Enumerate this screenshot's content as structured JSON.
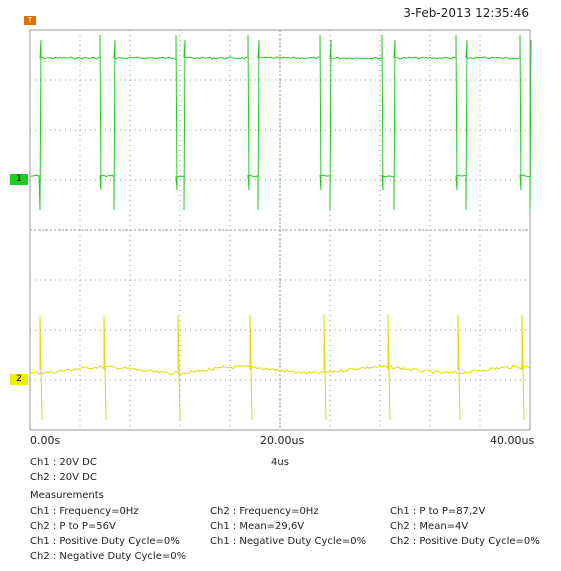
{
  "header": {
    "timestamp": "3-Feb-2013 12:35:46"
  },
  "markers": {
    "ch1": "1",
    "ch2": "2",
    "trigger": "T"
  },
  "time_axis": {
    "start": "0.00s",
    "mid": "20.00us",
    "end": "40.00us"
  },
  "channels": {
    "ch1": "Ch1 : 20V  DC",
    "ch2": "Ch2 : 20V  DC"
  },
  "timebase": "4us",
  "measurements": {
    "title": "Measurements",
    "items": [
      "Ch1 : Frequency=0Hz",
      "Ch2 : Frequency=0Hz",
      "Ch1 : P to P=87,2V",
      "Ch2 : P to P=56V",
      "Ch1 : Mean=29,6V",
      "Ch2 : Mean=4V",
      "Ch1 : Positive Duty Cycle=0%",
      "Ch1 : Negative Duty Cycle=0%",
      "Ch2 : Positive Duty Cycle=0%",
      "Ch2 : Negative Duty Cycle=0%"
    ]
  },
  "colors": {
    "ch1": "#22cc22",
    "ch2": "#dddd00",
    "grid": "#9a9a9a"
  }
}
